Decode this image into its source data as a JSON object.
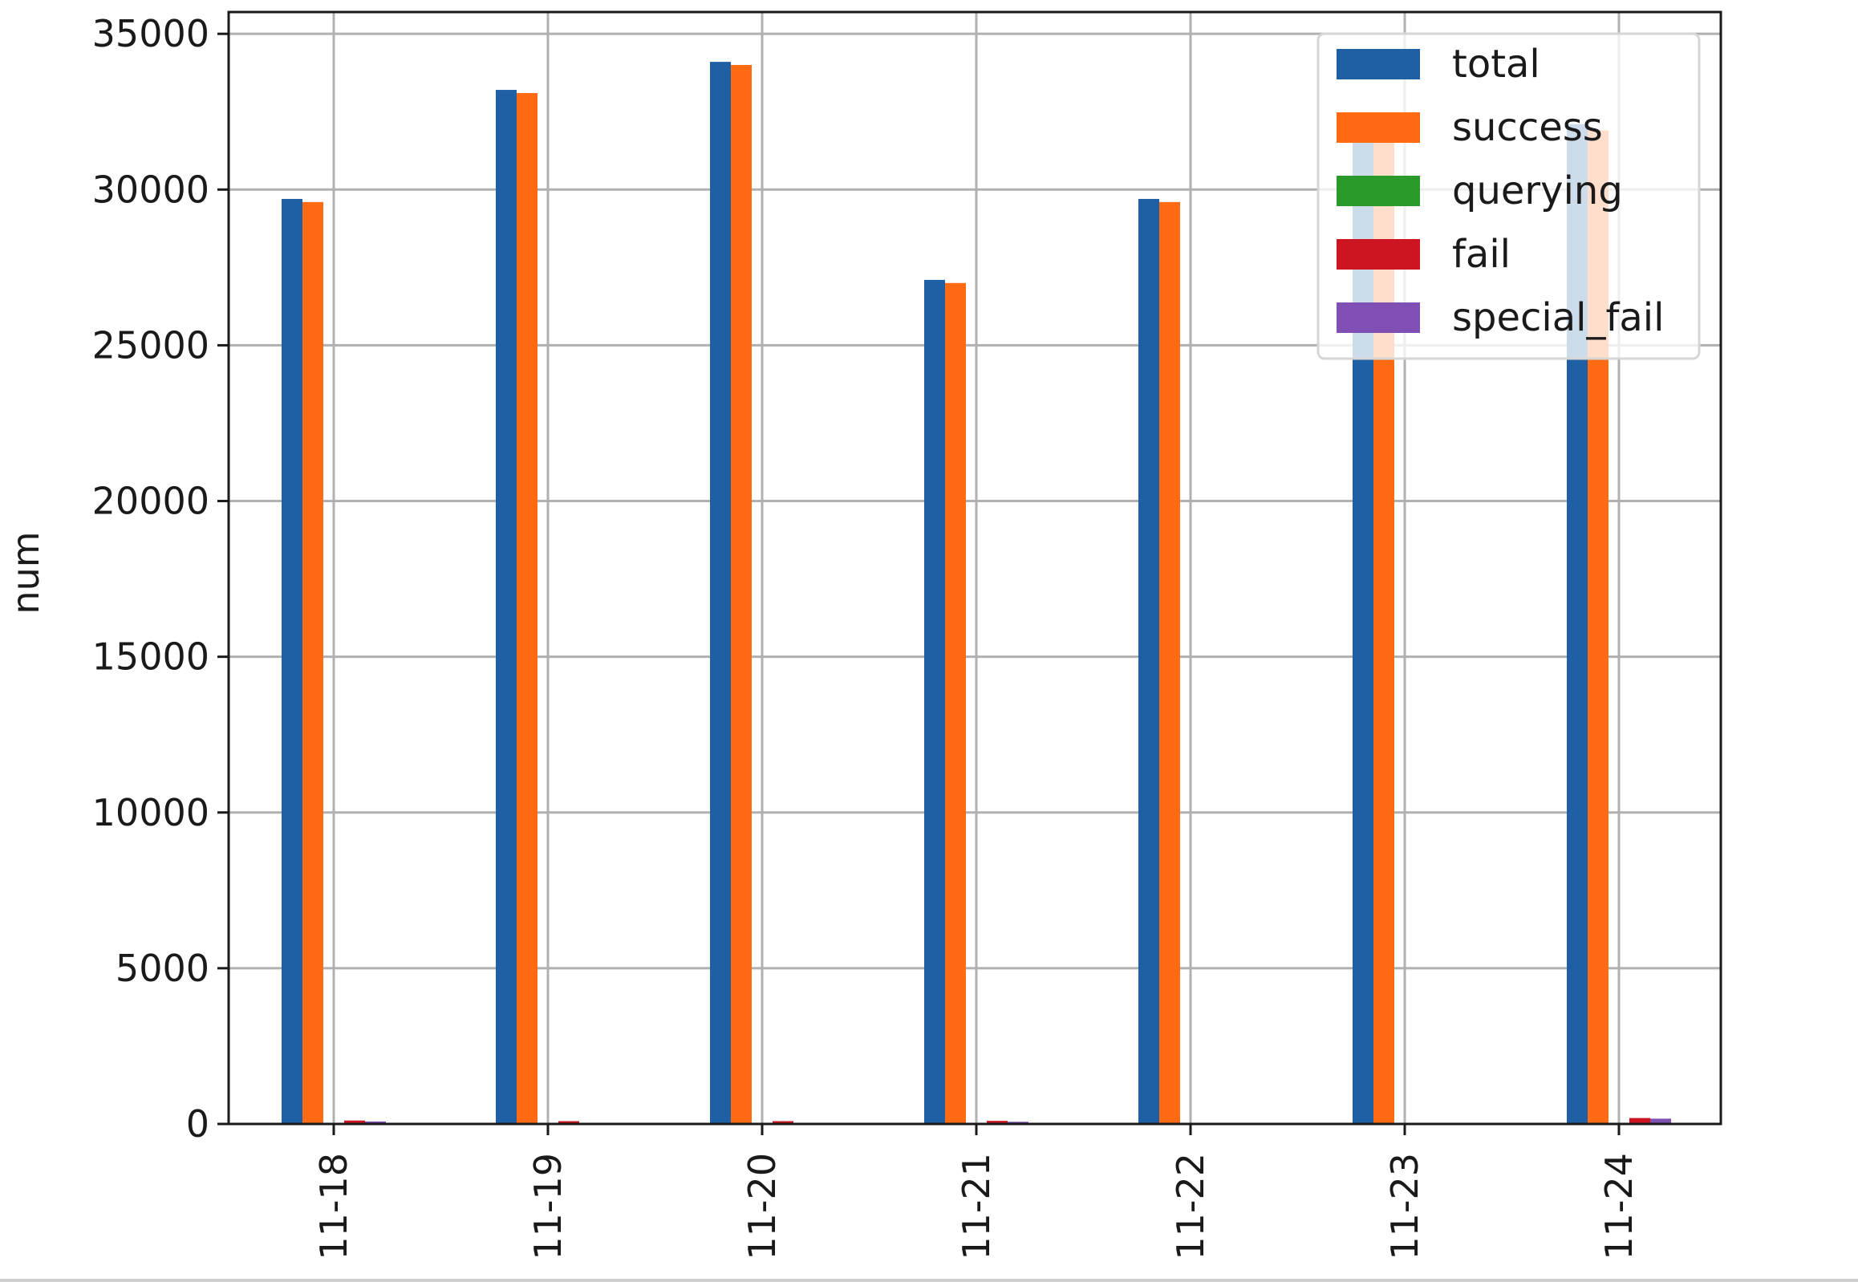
{
  "chart_data": {
    "type": "bar",
    "title": "",
    "xlabel": "",
    "ylabel": "num",
    "ylim": [
      0,
      35700
    ],
    "yticks": [
      0,
      5000,
      10000,
      15000,
      20000,
      25000,
      30000,
      35000
    ],
    "ytick_labels": [
      "0",
      "5000",
      "10000",
      "15000",
      "20000",
      "25000",
      "30000",
      "35000"
    ],
    "categories": [
      "11-18",
      "11-19",
      "11-20",
      "11-21",
      "11-22",
      "11-23",
      "11-24"
    ],
    "grid": true,
    "legend_position": "top-right",
    "series": [
      {
        "name": "total",
        "color": "#1f5fa4",
        "values": [
          29700,
          33200,
          34100,
          27100,
          29700,
          31600,
          32100
        ]
      },
      {
        "name": "success",
        "color": "#ff6a13",
        "values": [
          29600,
          33100,
          34000,
          27000,
          29600,
          31500,
          31900
        ]
      },
      {
        "name": "querying",
        "color": "#2a9a2a",
        "values": [
          0,
          0,
          0,
          0,
          0,
          0,
          0
        ]
      },
      {
        "name": "fail",
        "color": "#cc1520",
        "values": [
          110,
          90,
          90,
          100,
          0,
          0,
          190
        ]
      },
      {
        "name": "special_fail",
        "color": "#7f4fb4",
        "values": [
          80,
          0,
          0,
          70,
          0,
          0,
          170
        ]
      }
    ]
  }
}
